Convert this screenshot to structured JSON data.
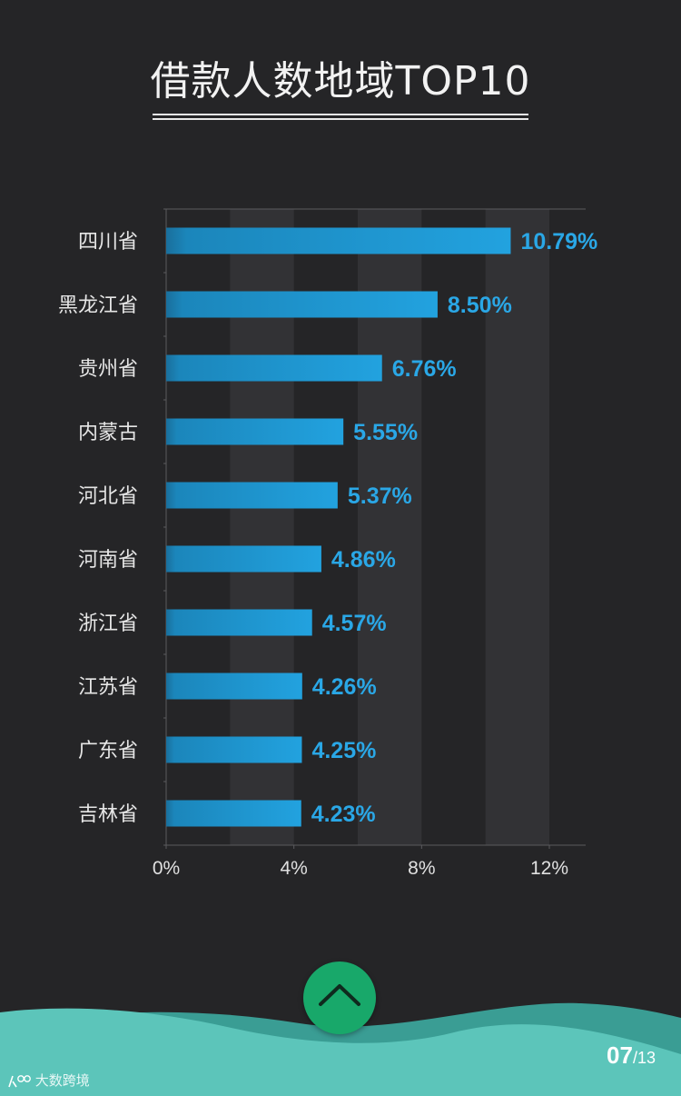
{
  "title": "借款人数地域TOP10",
  "chart_data": {
    "type": "bar",
    "orientation": "horizontal",
    "title": "借款人数地域TOP10",
    "categories": [
      "四川省",
      "黑龙江省",
      "贵州省",
      "内蒙古",
      "河北省",
      "河南省",
      "浙江省",
      "江苏省",
      "广东省",
      "吉林省"
    ],
    "values": [
      10.79,
      8.5,
      6.76,
      5.55,
      5.37,
      4.86,
      4.57,
      4.26,
      4.25,
      4.23
    ],
    "value_labels": [
      "10.79%",
      "8.50%",
      "6.76%",
      "5.55%",
      "5.37%",
      "4.86%",
      "4.57%",
      "4.26%",
      "4.25%",
      "4.23%"
    ],
    "xlim": [
      0,
      13
    ],
    "xticks": [
      0,
      4,
      8,
      12
    ],
    "xtick_labels": [
      "0%",
      "4%",
      "8%",
      "12%"
    ],
    "xlabel": "",
    "ylabel": "",
    "grid": "alternating vertical bands",
    "legend": "none",
    "colors": {
      "bar": "#1d92cc",
      "bar_highlight": "#2aa7e6",
      "value_label": "#2aa7e6",
      "band": "#323235",
      "background": "#252527"
    }
  },
  "navigation": {
    "up_button_icon": "chevron-up-icon",
    "page_current": "07",
    "page_total": "/13"
  },
  "watermark": {
    "text": "大数跨境",
    "logo_icon": "brand-logo-icon"
  },
  "colors": {
    "wave_light": "#5cc5ba",
    "wave_dark": "#3a9d94",
    "button": "#18a86a"
  }
}
